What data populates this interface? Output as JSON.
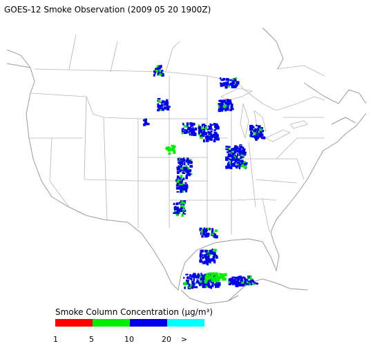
{
  "title": "GOES-12 Smoke Observation (2009 05 20  1900Z)",
  "legend": {
    "title": "Smoke Column Concentration (μg/m³)",
    "colors": [
      "#ff0000",
      "#00ee00",
      "#0000ee",
      "#00ffff"
    ],
    "labels": [
      "1",
      "5",
      "10",
      "20",
      ">"
    ]
  }
}
